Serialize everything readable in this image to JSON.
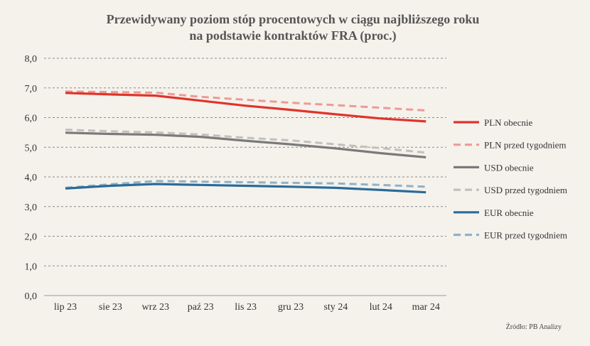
{
  "chart_data": {
    "type": "line",
    "title_lines": [
      "Przewidywany poziom stóp procentowych w ciągu najbliższego roku",
      "na podstawie kontraktów FRA (proc.)"
    ],
    "xlabel": "",
    "ylabel": "",
    "categories": [
      "lip 23",
      "sie 23",
      "wrz 23",
      "paź 23",
      "lis 23",
      "gru 23",
      "sty 24",
      "lut 24",
      "mar 24"
    ],
    "ylim": [
      0,
      8
    ],
    "yticks": [
      "0,0",
      "1,0",
      "2,0",
      "3,0",
      "4,0",
      "5,0",
      "6,0",
      "7,0",
      "8,0"
    ],
    "grid": "horizontal dashed",
    "legend_position": "right",
    "series": [
      {
        "name": "PLN obecnie",
        "color": "#e0342b",
        "dashed": false,
        "values": [
          6.83,
          6.78,
          6.74,
          6.57,
          6.4,
          6.26,
          6.11,
          5.97,
          5.87
        ]
      },
      {
        "name": "PLN przed tygodniem",
        "color": "#ed9a95",
        "dashed": true,
        "values": [
          6.88,
          6.86,
          6.84,
          6.7,
          6.6,
          6.5,
          6.42,
          6.33,
          6.24
        ]
      },
      {
        "name": "USD obecnie",
        "color": "#7a7a7a",
        "dashed": false,
        "values": [
          5.49,
          5.45,
          5.42,
          5.35,
          5.22,
          5.1,
          4.96,
          4.8,
          4.66
        ]
      },
      {
        "name": "USD przed tygodniem",
        "color": "#c2c0bd",
        "dashed": true,
        "values": [
          5.59,
          5.54,
          5.5,
          5.43,
          5.32,
          5.23,
          5.1,
          4.97,
          4.82
        ]
      },
      {
        "name": "EUR obecnie",
        "color": "#2a6b99",
        "dashed": false,
        "values": [
          3.61,
          3.7,
          3.76,
          3.73,
          3.7,
          3.67,
          3.63,
          3.56,
          3.48
        ]
      },
      {
        "name": "EUR przed tygodniem",
        "color": "#8fb1c8",
        "dashed": true,
        "values": [
          3.63,
          3.75,
          3.86,
          3.84,
          3.82,
          3.8,
          3.78,
          3.73,
          3.67
        ]
      }
    ]
  },
  "source_text": "Źródło: PB Analizy"
}
